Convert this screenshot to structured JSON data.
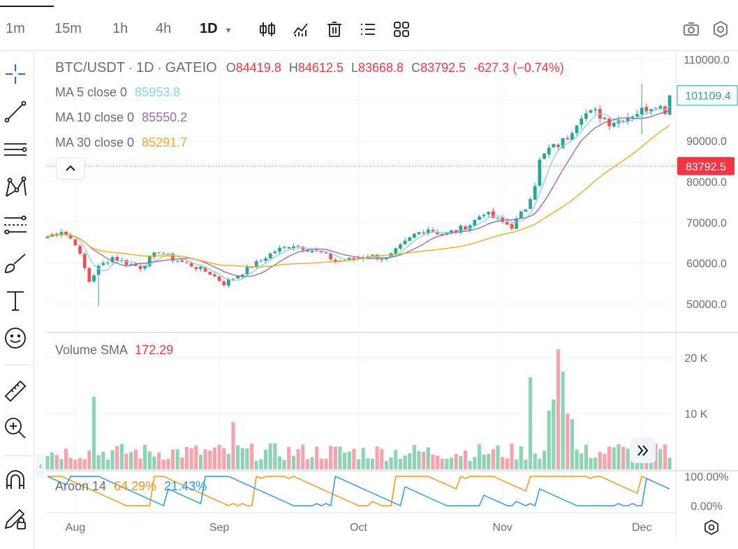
{
  "toolbar": {
    "timeframes": [
      "1m",
      "15m",
      "1h",
      "4h",
      "1D"
    ],
    "active_timeframe": "1D",
    "icons": [
      "candles-icon",
      "indicators-icon",
      "trash-icon",
      "list-icon",
      "grid-icon",
      "camera-icon",
      "settings-icon"
    ]
  },
  "left_tools": [
    "crosshair-icon",
    "trend-line-icon",
    "horizontal-lines-icon",
    "pattern-icon",
    "fib-icon",
    "brush-icon",
    "text-icon",
    "emoji-icon",
    "ruler-icon",
    "zoom-icon",
    "magnet-icon",
    "lock-pencil-icon"
  ],
  "legend": {
    "symbol": "BTC/USDT",
    "sep": "·",
    "interval": "1D",
    "exchange": "GATEIO",
    "o_label": "O",
    "o_value": "84419.8",
    "h_label": "H",
    "h_value": "84612.5",
    "l_label": "L",
    "l_value": "83668.8",
    "c_label": "C",
    "c_value": "83792.5",
    "change": "-627.3",
    "change_pct": "(−0.74%)",
    "ma5_label": "MA 5 close 0",
    "ma5_value": "85953.8",
    "ma10_label": "MA 10 close 0",
    "ma10_value": "85550.2",
    "ma30_label": "MA 30 close 0",
    "ma30_value": "85291.7",
    "volume_label": "Volume SMA",
    "volume_value": "172.29",
    "aroon_label": "Aroon 14",
    "aroon_up": "64.29%",
    "aroon_down": "21.43%"
  },
  "colors": {
    "up": "#26a69a",
    "down": "#ef5350",
    "vol_up": "#8fd3b6",
    "vol_down": "#f5a3ac",
    "ma5": "#7fd8e4",
    "ma10": "#9c6bb3",
    "ma30": "#f5a623",
    "aroon_up": "#f5930f",
    "aroon_down": "#2196f3",
    "current_price_bg": "#f23645",
    "last_label_border": "#26a69a"
  },
  "chart_data": {
    "type": "candlestick",
    "symbol": "BTC/USDT",
    "interval": "1D",
    "price_axis": {
      "ticks": [
        "110000.0",
        "90000.0",
        "80000.0",
        "70000.0",
        "60000.0",
        "50000.0"
      ],
      "tick_values": [
        110000,
        90000,
        80000,
        70000,
        60000,
        50000
      ],
      "range": [
        43000,
        111500
      ]
    },
    "current_price_label": "83792.5",
    "current_price": 83792.5,
    "last_close_label": "101109.4",
    "last_close": 101109.4,
    "x_axis": {
      "labels": [
        "Aug",
        "Sep",
        "Oct",
        "Nov",
        "Dec"
      ],
      "label_day_index": [
        6,
        37,
        67,
        98,
        128
      ]
    },
    "volume_axis": {
      "ticks": [
        "20 K",
        "10 K"
      ],
      "tick_values": [
        20000,
        10000
      ],
      "range": [
        0,
        23500
      ]
    },
    "aroon_axis": {
      "ticks": [
        "100.00%",
        "0.00%"
      ],
      "tick_values": [
        100,
        0
      ]
    },
    "aroon": {
      "period": 14,
      "up_last": 64.29,
      "down_last": 21.43
    },
    "ohlc_anchors": [
      [
        0,
        66500
      ],
      [
        3,
        68000
      ],
      [
        6,
        65000
      ],
      [
        9,
        55500
      ],
      [
        11,
        59000
      ],
      [
        14,
        61500
      ],
      [
        17,
        60000
      ],
      [
        20,
        59000
      ],
      [
        24,
        63000
      ],
      [
        27,
        61000
      ],
      [
        31,
        59500
      ],
      [
        35,
        57500
      ],
      [
        38,
        55000
      ],
      [
        41,
        57000
      ],
      [
        45,
        60000
      ],
      [
        49,
        63000
      ],
      [
        53,
        64500
      ],
      [
        56,
        63500
      ],
      [
        59,
        62500
      ],
      [
        62,
        60500
      ],
      [
        66,
        61000
      ],
      [
        69,
        62000
      ],
      [
        73,
        61000
      ],
      [
        76,
        64000
      ],
      [
        79,
        67000
      ],
      [
        82,
        68500
      ],
      [
        85,
        67000
      ],
      [
        88,
        68000
      ],
      [
        91,
        69500
      ],
      [
        94,
        72500
      ],
      [
        97,
        70500
      ],
      [
        100,
        69000
      ],
      [
        103,
        73500
      ],
      [
        105,
        79500
      ],
      [
        106,
        85000
      ],
      [
        108,
        88000
      ],
      [
        110,
        89000
      ],
      [
        112,
        91000
      ],
      [
        115,
        96500
      ],
      [
        118,
        97000
      ],
      [
        121,
        94500
      ],
      [
        124,
        95500
      ],
      [
        127,
        97000
      ],
      [
        129,
        98000
      ],
      [
        131,
        99000
      ],
      [
        133,
        97500
      ],
      [
        134,
        101109.4
      ]
    ],
    "volume_spikes": {
      "10": 13000,
      "40": 8500,
      "104": 16500,
      "110": 21500,
      "111": 17500,
      "109": 12500,
      "108": 10500,
      "112": 10000,
      "113": 9000,
      "123": 4500
    }
  }
}
